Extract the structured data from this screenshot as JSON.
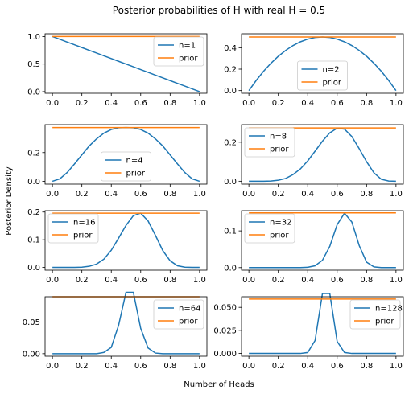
{
  "figure": {
    "title": "Posterior probabilities of H with real H = 0.5",
    "xlabel": "Number of Heads",
    "ylabel": "Posterior Density",
    "colors": {
      "posterior": "#1f77b4",
      "prior": "#ff7f0e"
    }
  },
  "chart_data": [
    {
      "type": "line",
      "legend": "top-right",
      "x": [
        0.0,
        0.05,
        0.1,
        0.15,
        0.2,
        0.25,
        0.3,
        0.35,
        0.4,
        0.45,
        0.5,
        0.55,
        0.6,
        0.65,
        0.7,
        0.75,
        0.8,
        0.85,
        0.9,
        0.95,
        1.0
      ],
      "ylim": [
        -0.03,
        1.05
      ],
      "yticks": [
        "0.0",
        "0.5",
        "1.0"
      ],
      "ytick_values": [
        0,
        0.5,
        1.0
      ],
      "xticks": [
        "0.0",
        "0.2",
        "0.4",
        "0.6",
        "0.8",
        "1.0"
      ],
      "series": [
        {
          "name": "n=1",
          "values": [
            1.0,
            0.95,
            0.9,
            0.85,
            0.8,
            0.75,
            0.7,
            0.65,
            0.6,
            0.55,
            0.5,
            0.45,
            0.4,
            0.35,
            0.3,
            0.25,
            0.2,
            0.15,
            0.1,
            0.05,
            0.0
          ]
        },
        {
          "name": "prior",
          "values": [
            1.0,
            1.0,
            1.0,
            1.0,
            1.0,
            1.0,
            1.0,
            1.0,
            1.0,
            1.0,
            1.0,
            1.0,
            1.0,
            1.0,
            1.0,
            1.0,
            1.0,
            1.0,
            1.0,
            1.0,
            1.0
          ]
        }
      ]
    },
    {
      "type": "line",
      "legend": "bottom-center",
      "x": [
        0.0,
        0.05,
        0.1,
        0.15,
        0.2,
        0.25,
        0.3,
        0.35,
        0.4,
        0.45,
        0.5,
        0.55,
        0.6,
        0.65,
        0.7,
        0.75,
        0.8,
        0.85,
        0.9,
        0.95,
        1.0
      ],
      "ylim": [
        -0.025,
        0.53
      ],
      "yticks": [
        "0.0",
        "0.2",
        "0.4"
      ],
      "ytick_values": [
        0,
        0.2,
        0.4
      ],
      "xticks": [
        "0.0",
        "0.2",
        "0.4",
        "0.6",
        "0.8",
        "1.0"
      ],
      "series": [
        {
          "name": "n=2",
          "values": [
            0.0,
            0.095,
            0.18,
            0.255,
            0.32,
            0.375,
            0.42,
            0.455,
            0.48,
            0.495,
            0.5,
            0.495,
            0.48,
            0.455,
            0.42,
            0.375,
            0.32,
            0.255,
            0.18,
            0.095,
            0.0
          ]
        },
        {
          "name": "prior",
          "values": [
            0.5,
            0.5,
            0.5,
            0.5,
            0.5,
            0.5,
            0.5,
            0.5,
            0.5,
            0.5,
            0.5,
            0.5,
            0.5,
            0.5,
            0.5,
            0.5,
            0.5,
            0.5,
            0.5,
            0.5,
            0.5
          ]
        }
      ]
    },
    {
      "type": "line",
      "legend": "bottom-center",
      "x": [
        0.0,
        0.05,
        0.1,
        0.15,
        0.2,
        0.25,
        0.3,
        0.35,
        0.4,
        0.45,
        0.5,
        0.55,
        0.6,
        0.65,
        0.7,
        0.75,
        0.8,
        0.85,
        0.9,
        0.95,
        1.0
      ],
      "ylim": [
        -0.02,
        0.395
      ],
      "yticks": [
        "0.0",
        "0.2"
      ],
      "ytick_values": [
        0,
        0.2
      ],
      "xticks": [
        "0.0",
        "0.2",
        "0.4",
        "0.6",
        "0.8",
        "1.0"
      ],
      "series": [
        {
          "name": "n=4",
          "values": [
            0.0,
            0.017,
            0.061,
            0.121,
            0.184,
            0.246,
            0.296,
            0.336,
            0.361,
            0.373,
            0.375,
            0.373,
            0.361,
            0.336,
            0.296,
            0.246,
            0.184,
            0.121,
            0.061,
            0.017,
            0.0
          ]
        },
        {
          "name": "prior",
          "values": [
            0.375,
            0.375,
            0.375,
            0.375,
            0.375,
            0.375,
            0.375,
            0.375,
            0.375,
            0.375,
            0.375,
            0.375,
            0.375,
            0.375,
            0.375,
            0.375,
            0.375,
            0.375,
            0.375,
            0.375,
            0.375
          ]
        }
      ]
    },
    {
      "type": "line",
      "legend": "top-left",
      "x": [
        0.0,
        0.05,
        0.1,
        0.15,
        0.2,
        0.25,
        0.3,
        0.35,
        0.4,
        0.45,
        0.5,
        0.55,
        0.6,
        0.65,
        0.7,
        0.75,
        0.8,
        0.85,
        0.9,
        0.95,
        1.0
      ],
      "ylim": [
        -0.015,
        0.29
      ],
      "yticks": [
        "0.0",
        "0.2"
      ],
      "ytick_values": [
        0,
        0.2
      ],
      "xticks": [
        "0.0",
        "0.2",
        "0.4",
        "0.6",
        "0.8",
        "1.0"
      ],
      "series": [
        {
          "name": "n=8",
          "values": [
            0.0,
            0.0,
            0.0,
            0.001,
            0.005,
            0.014,
            0.034,
            0.063,
            0.104,
            0.154,
            0.205,
            0.248,
            0.272,
            0.267,
            0.229,
            0.167,
            0.1,
            0.043,
            0.01,
            0.001,
            0.0
          ]
        },
        {
          "name": "prior",
          "values": [
            0.273,
            0.273,
            0.273,
            0.273,
            0.273,
            0.273,
            0.273,
            0.273,
            0.273,
            0.273,
            0.273,
            0.273,
            0.273,
            0.273,
            0.273,
            0.273,
            0.273,
            0.273,
            0.273,
            0.273,
            0.273
          ]
        }
      ]
    },
    {
      "type": "line",
      "legend": "top-left",
      "x": [
        0.0,
        0.05,
        0.1,
        0.15,
        0.2,
        0.25,
        0.3,
        0.35,
        0.4,
        0.45,
        0.5,
        0.55,
        0.6,
        0.65,
        0.7,
        0.75,
        0.8,
        0.85,
        0.9,
        0.95,
        1.0
      ],
      "ylim": [
        -0.01,
        0.205
      ],
      "yticks": [
        "0.0",
        "0.1",
        "0.2"
      ],
      "ytick_values": [
        0,
        0.1,
        0.2
      ],
      "xticks": [
        "0.0",
        "0.2",
        "0.4",
        "0.6",
        "0.8",
        "1.0"
      ],
      "series": [
        {
          "name": "n=16",
          "values": [
            0.0,
            0.0,
            0.0,
            0.0,
            0.001,
            0.004,
            0.012,
            0.03,
            0.062,
            0.106,
            0.152,
            0.187,
            0.196,
            0.168,
            0.116,
            0.061,
            0.024,
            0.006,
            0.001,
            0.0,
            0.0
          ]
        },
        {
          "name": "prior",
          "values": [
            0.196,
            0.196,
            0.196,
            0.196,
            0.196,
            0.196,
            0.196,
            0.196,
            0.196,
            0.196,
            0.196,
            0.196,
            0.196,
            0.196,
            0.196,
            0.196,
            0.196,
            0.196,
            0.196,
            0.196,
            0.196
          ]
        }
      ]
    },
    {
      "type": "line",
      "legend": "top-left",
      "x": [
        0.0,
        0.05,
        0.1,
        0.15,
        0.2,
        0.25,
        0.3,
        0.35,
        0.4,
        0.45,
        0.5,
        0.55,
        0.6,
        0.65,
        0.7,
        0.75,
        0.8,
        0.85,
        0.9,
        0.95,
        1.0
      ],
      "ylim": [
        -0.007,
        0.155
      ],
      "yticks": [
        "0.0",
        "0.1"
      ],
      "ytick_values": [
        0,
        0.1
      ],
      "xticks": [
        "0.0",
        "0.2",
        "0.4",
        "0.6",
        "0.8",
        "1.0"
      ],
      "series": [
        {
          "name": "n=32",
          "values": [
            0.0,
            0.0,
            0.0,
            0.0,
            0.0,
            0.0,
            0.0,
            0.0,
            0.001,
            0.005,
            0.02,
            0.058,
            0.117,
            0.148,
            0.124,
            0.06,
            0.015,
            0.002,
            0.0,
            0.0,
            0.0
          ]
        },
        {
          "name": "prior",
          "values": [
            0.149,
            0.149,
            0.149,
            0.149,
            0.149,
            0.149,
            0.149,
            0.149,
            0.149,
            0.149,
            0.149,
            0.149,
            0.149,
            0.149,
            0.149,
            0.149,
            0.149,
            0.149,
            0.149,
            0.149,
            0.149
          ]
        }
      ]
    },
    {
      "type": "line",
      "legend": "top-right",
      "x": [
        0.0,
        0.05,
        0.1,
        0.15,
        0.2,
        0.25,
        0.3,
        0.35,
        0.4,
        0.45,
        0.5,
        0.55,
        0.6,
        0.65,
        0.7,
        0.75,
        0.8,
        0.85,
        0.9,
        0.95,
        1.0
      ],
      "ylim": [
        -0.004,
        0.09
      ],
      "yticks": [
        "0.00",
        "0.05"
      ],
      "ytick_values": [
        0,
        0.05
      ],
      "xticks": [
        "0.0",
        "0.2",
        "0.4",
        "0.6",
        "0.8",
        "1.0"
      ],
      "series": [
        {
          "name": "n=64",
          "values": [
            0.0,
            0.0,
            0.0,
            0.0,
            0.0,
            0.0,
            0.0,
            0.002,
            0.01,
            0.045,
            0.097,
            0.097,
            0.04,
            0.009,
            0.001,
            0.0,
            0.0,
            0.0,
            0.0,
            0.0,
            0.0
          ]
        },
        {
          "name": "prior",
          "values": [
            0.09,
            0.09,
            0.09,
            0.09,
            0.09,
            0.09,
            0.09,
            0.09,
            0.09,
            0.09,
            0.09,
            0.09,
            0.09,
            0.09,
            0.09,
            0.09,
            0.09,
            0.09,
            0.09,
            0.09,
            0.09
          ]
        }
      ]
    },
    {
      "type": "line",
      "legend": "top-right",
      "x": [
        0.0,
        0.05,
        0.1,
        0.15,
        0.2,
        0.25,
        0.3,
        0.35,
        0.4,
        0.45,
        0.5,
        0.55,
        0.6,
        0.65,
        0.7,
        0.75,
        0.8,
        0.85,
        0.9,
        0.95,
        1.0
      ],
      "ylim": [
        -0.003,
        0.0615
      ],
      "yticks": [
        "0.000",
        "0.025",
        "0.050"
      ],
      "ytick_values": [
        0,
        0.025,
        0.05
      ],
      "xticks": [
        "0.0",
        "0.2",
        "0.4",
        "0.6",
        "0.8",
        "1.0"
      ],
      "series": [
        {
          "name": "n=128",
          "values": [
            0.0,
            0.0,
            0.0,
            0.0,
            0.0,
            0.0,
            0.0,
            0.0,
            0.001,
            0.014,
            0.065,
            0.065,
            0.013,
            0.001,
            0.0,
            0.0,
            0.0,
            0.0,
            0.0,
            0.0,
            0.0
          ]
        },
        {
          "name": "prior",
          "values": [
            0.059,
            0.059,
            0.059,
            0.059,
            0.059,
            0.059,
            0.059,
            0.059,
            0.059,
            0.059,
            0.059,
            0.059,
            0.059,
            0.059,
            0.059,
            0.059,
            0.059,
            0.059,
            0.059,
            0.059,
            0.059
          ]
        }
      ]
    }
  ]
}
